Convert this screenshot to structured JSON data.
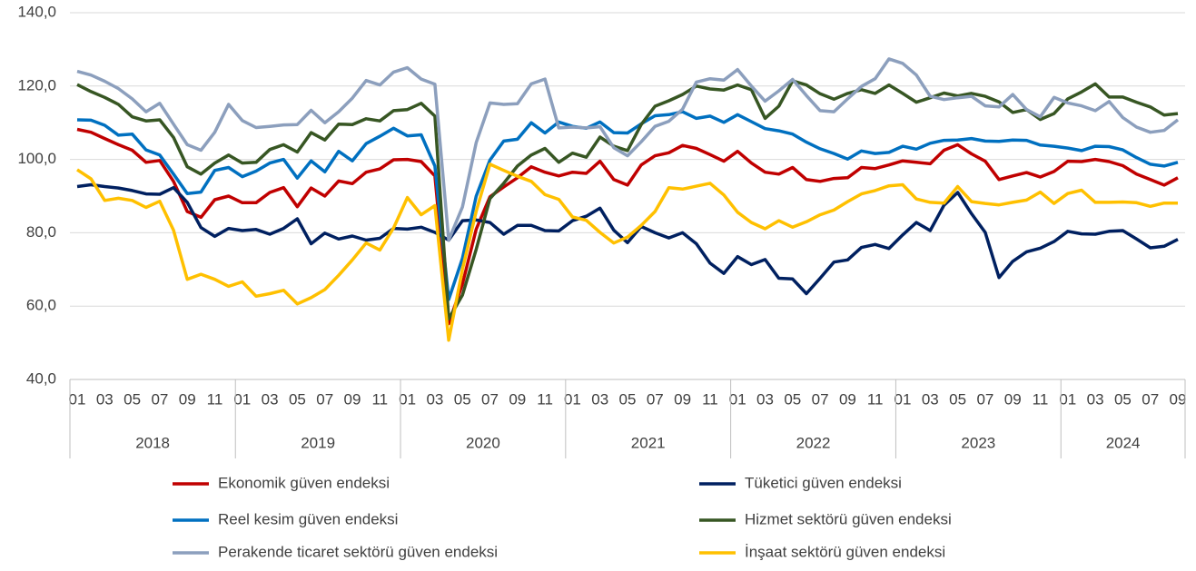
{
  "chart_data": {
    "type": "line",
    "categories": [
      "01",
      null,
      "03",
      null,
      "05",
      null,
      "07",
      null,
      "09",
      null,
      "11",
      null,
      "01",
      null,
      "03",
      null,
      "05",
      null,
      "07",
      null,
      "09",
      null,
      "11",
      null,
      "01",
      null,
      "03",
      null,
      "05",
      null,
      "07",
      null,
      "09",
      null,
      "11",
      null,
      "01",
      null,
      "03",
      null,
      "05",
      null,
      "07",
      null,
      "09",
      null,
      "11",
      null,
      "01",
      null,
      "03",
      null,
      "05",
      null,
      "07",
      null,
      "09",
      null,
      "11",
      null,
      "01",
      null,
      "03",
      null,
      "05",
      null,
      "07",
      null,
      "09",
      null,
      "11",
      null,
      "01",
      null,
      "03",
      null,
      "05",
      null,
      "07",
      null,
      "09"
    ],
    "years": [
      "2018",
      "2019",
      "2020",
      "2021",
      "2022",
      "2023",
      "2024"
    ],
    "ylim": [
      40,
      140
    ],
    "yticks": [
      {
        "value": 40,
        "label": "40,0"
      },
      {
        "value": 60,
        "label": "60,0"
      },
      {
        "value": 80,
        "label": "80,0"
      },
      {
        "value": 100,
        "label": "100,0"
      },
      {
        "value": 120,
        "label": "120,0"
      },
      {
        "value": 140,
        "label": "140,0"
      }
    ],
    "grid": true,
    "series": [
      {
        "name": "Ekonomik güven endeksi",
        "color": "#c00000",
        "values": [
          108.2,
          107.4,
          105.7,
          104,
          102.5,
          99.2,
          99.7,
          94,
          85.8,
          84.2,
          89,
          90,
          88.2,
          88.2,
          91,
          92.3,
          87.1,
          92.2,
          90,
          94.1,
          93.4,
          96.5,
          97.4,
          99.9,
          100,
          99.4,
          95.5,
          55.2,
          66,
          81,
          89.8,
          92.5,
          95,
          98,
          96.5,
          95.5,
          96.5,
          96.2,
          99.5,
          94.5,
          93,
          98.5,
          101,
          101.8,
          103.8,
          103,
          101.3,
          99.5,
          102.2,
          99,
          96.5,
          96,
          97.8,
          94.5,
          94,
          94.8,
          95,
          97.8,
          97.5,
          98.5,
          99.6,
          99.2,
          98.8,
          102.5,
          104,
          101.5,
          99.5,
          94.5,
          95.5,
          96.4,
          95.2,
          96.7,
          99.5,
          99.4,
          100,
          99.4,
          98.3,
          96,
          94.5,
          93,
          95
        ]
      },
      {
        "name": "Tüketici güven endeksi",
        "color": "#002060",
        "values": [
          92.6,
          93.1,
          92.6,
          92.2,
          91.5,
          90.6,
          90.5,
          92.3,
          88.3,
          81.4,
          79,
          81.2,
          80.6,
          80.9,
          79.6,
          81.2,
          83.8,
          77,
          79.9,
          78.3,
          79.1,
          78,
          78.5,
          81.2,
          81,
          81.5,
          80.1,
          78,
          83.3,
          83.5,
          82.8,
          79.6,
          82,
          82,
          80.6,
          80.5,
          83.3,
          84.5,
          86.7,
          80.7,
          77.3,
          81.7,
          80,
          78.6,
          80,
          77,
          71.7,
          68.9,
          73.5,
          71.3,
          72.7,
          67.6,
          67.4,
          63.4,
          67.6,
          72,
          72.6,
          76,
          76.8,
          75.7,
          79.4,
          82.8,
          80.6,
          87.5,
          91,
          85.2,
          80.1,
          67.8,
          72.2,
          74.8,
          75.8,
          77.6,
          80.4,
          79.7,
          79.6,
          80.4,
          80.6,
          78.3,
          75.9,
          76.3,
          78.2
        ]
      },
      {
        "name": "Reel kesim güven endeksi",
        "color": "#0070c0",
        "values": [
          110.8,
          110.7,
          109.3,
          106.6,
          106.9,
          102.6,
          101.2,
          96,
          90.7,
          91.1,
          97,
          97.8,
          95.3,
          96.8,
          99,
          100,
          94.9,
          99.6,
          96.6,
          102.2,
          99.6,
          104.3,
          106.3,
          108.5,
          106.4,
          106.7,
          98.2,
          61.8,
          73,
          90,
          99.8,
          105,
          105.5,
          110,
          107.2,
          110.2,
          109,
          108.5,
          110.2,
          107.3,
          107.2,
          109.7,
          111.9,
          112.2,
          113,
          111.2,
          111.8,
          110.1,
          112.2,
          110.3,
          108.4,
          107.8,
          106.9,
          104.7,
          102.9,
          101.6,
          100.1,
          102.3,
          101.6,
          101.9,
          103.6,
          102.8,
          104.4,
          105.2,
          105.3,
          105.7,
          105,
          104.9,
          105.3,
          105.2,
          103.9,
          103.6,
          103.1,
          102.4,
          103.6,
          103.5,
          102.6,
          100.5,
          98.7,
          98.2,
          99.2
        ]
      },
      {
        "name": "Hizmet sektörü güven endeksi",
        "color": "#375623",
        "values": [
          120.4,
          118.5,
          116.9,
          115,
          111.6,
          110.5,
          110.8,
          106,
          98,
          96,
          99,
          101.2,
          99,
          99.2,
          102.7,
          104,
          102,
          107.3,
          105.3,
          109.6,
          109.5,
          111.1,
          110.5,
          113.3,
          113.6,
          115.3,
          111.8,
          56.5,
          63,
          75.5,
          89.3,
          93.5,
          98.2,
          101.2,
          103,
          99.2,
          101.7,
          100.6,
          106.1,
          103.6,
          102.4,
          109.5,
          114.5,
          116,
          117.7,
          120,
          119.2,
          118.9,
          120.3,
          119,
          111.2,
          114.5,
          121.4,
          120.3,
          117.9,
          116.4,
          118,
          119,
          118,
          120.3,
          118,
          115.6,
          116.8,
          118.1,
          117.3,
          118,
          117.2,
          115.7,
          112.8,
          113.6,
          110.9,
          112.5,
          116.5,
          118.4,
          120.6,
          117,
          117,
          115.6,
          114.3,
          112.1,
          112.5
        ]
      },
      {
        "name": "Perakende ticaret sektörü güven endeksi",
        "color": "#8c9fbd",
        "values": [
          124,
          123,
          121.3,
          119.3,
          116.5,
          113,
          115.3,
          109.6,
          104,
          102.5,
          107.4,
          115,
          110.6,
          108.7,
          109,
          109.4,
          109.5,
          113.4,
          110,
          113,
          116.7,
          121.5,
          120.3,
          123.8,
          125,
          121.9,
          120.5,
          78,
          87,
          104.6,
          115.4,
          115,
          115.2,
          120.6,
          121.9,
          108.6,
          108.8,
          108.6,
          108.9,
          103.2,
          101,
          104.8,
          109,
          110.4,
          113.7,
          121.1,
          122,
          121.6,
          124.5,
          120,
          115.9,
          118.7,
          121.8,
          117.4,
          113.3,
          113,
          116.5,
          119.9,
          122,
          127.4,
          126.2,
          123,
          117.2,
          116.3,
          116.8,
          117.2,
          114.6,
          114.3,
          117.7,
          113.6,
          111.6,
          116.9,
          115.4,
          114.6,
          113.3,
          115.8,
          111.4,
          108.8,
          107.4,
          107.9,
          110.8
        ]
      },
      {
        "name": "İnşaat sektörü güven endeksi",
        "color": "#ffc000",
        "values": [
          97.2,
          94.7,
          88.8,
          89.4,
          88.8,
          86.9,
          88.6,
          80.7,
          67.3,
          68.7,
          67.3,
          65.4,
          66.6,
          62.7,
          63.4,
          64.3,
          60.6,
          62.3,
          64.5,
          68.4,
          72.6,
          77.2,
          75.3,
          81.3,
          89.6,
          84.9,
          87.4,
          50.7,
          70,
          85.9,
          98.7,
          97,
          95.4,
          94,
          90.4,
          89.1,
          84.3,
          83.4,
          80.1,
          77.2,
          78.8,
          82,
          85.8,
          92.3,
          91.9,
          92.7,
          93.5,
          90.3,
          85.6,
          82.8,
          81.1,
          83.3,
          81.5,
          83,
          84.9,
          86.2,
          88.5,
          90.6,
          91.5,
          92.8,
          93.1,
          89.2,
          88.3,
          88.1,
          92.6,
          88.5,
          88,
          87.6,
          88.3,
          88.9,
          91.1,
          88,
          90.7,
          91.6,
          88.3,
          88.3,
          88.4,
          88.2,
          87.2,
          88.1,
          88.1
        ]
      }
    ]
  }
}
